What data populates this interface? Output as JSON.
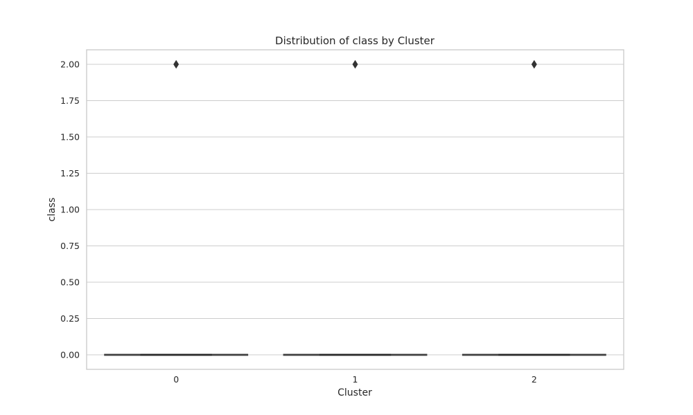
{
  "chart_data": {
    "type": "box",
    "title": "Distribution of class by Cluster",
    "xlabel": "Cluster",
    "ylabel": "class",
    "categories": [
      "0",
      "1",
      "2"
    ],
    "y_ticks": [
      "0.00",
      "0.25",
      "0.50",
      "0.75",
      "1.00",
      "1.25",
      "1.50",
      "1.75",
      "2.00"
    ],
    "ylim": [
      -0.1,
      2.1
    ],
    "grid": true,
    "boxes": [
      {
        "category": "0",
        "whisker_low": 0,
        "q1": 0,
        "median": 0,
        "q3": 0,
        "whisker_high": 0,
        "outliers": [
          2
        ]
      },
      {
        "category": "1",
        "whisker_low": 0,
        "q1": 0,
        "median": 0,
        "q3": 0,
        "whisker_high": 0,
        "outliers": [
          2
        ]
      },
      {
        "category": "2",
        "whisker_low": 0,
        "q1": 0,
        "median": 0,
        "q3": 0,
        "whisker_high": 0,
        "outliers": [
          2
        ]
      }
    ],
    "colors": {
      "box_line": "#3d3d3d",
      "grid": "#cccccc",
      "frame": "#cccccc",
      "text": "#262626"
    }
  }
}
